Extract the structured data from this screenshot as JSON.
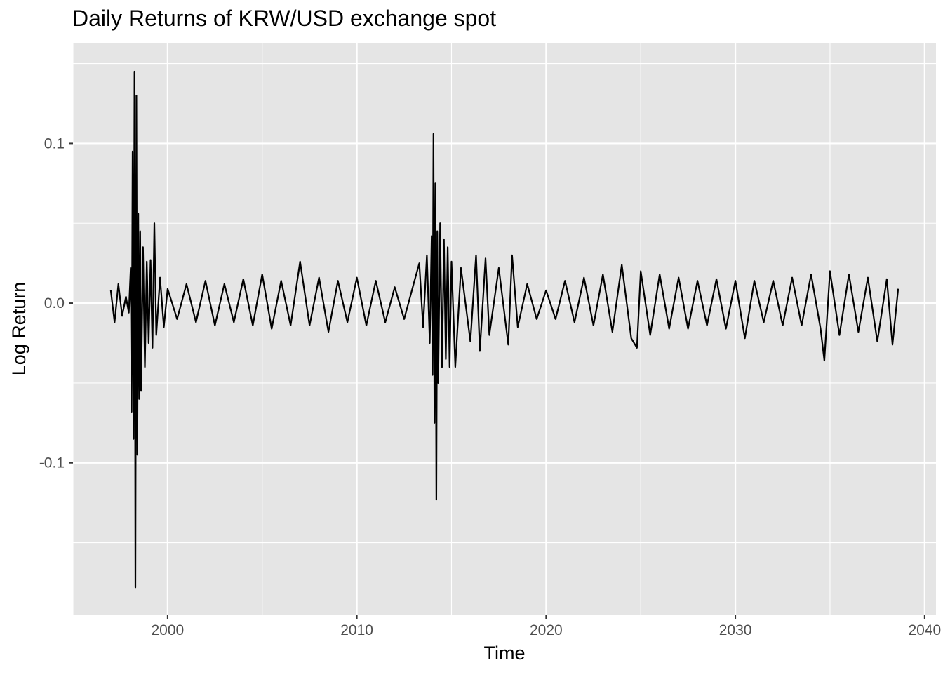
{
  "chart_data": {
    "type": "line",
    "title": "Daily Returns of KRW/USD exchange spot",
    "xlabel": "Time",
    "ylabel": "Log Return",
    "xlim": [
      1995,
      2040.6
    ],
    "ylim": [
      -0.195,
      0.163
    ],
    "x_ticks": [
      2000,
      2010,
      2020,
      2030,
      2040
    ],
    "x_tick_labels": [
      "2000",
      "2010",
      "2020",
      "2030",
      "2040"
    ],
    "y_ticks": [
      -0.1,
      0.0,
      0.1
    ],
    "y_tick_labels": [
      "-0.1",
      "0.0",
      "0.1"
    ],
    "grid": true,
    "legend": "none",
    "series": [
      {
        "x": [
          1997.0,
          1997.2,
          1997.4,
          1997.6,
          1997.8,
          1997.95,
          1998.05,
          1998.1,
          1998.15,
          1998.2,
          1998.25,
          1998.3,
          1998.35,
          1998.4,
          1998.45,
          1998.5,
          1998.55,
          1998.6,
          1998.7,
          1998.8,
          1998.9,
          1999.0,
          1999.1,
          1999.2,
          1999.3,
          1999.4,
          1999.6,
          1999.8,
          2000.0,
          2000.5,
          2001.0,
          2001.5,
          2002.0,
          2002.5,
          2003.0,
          2003.5,
          2004.0,
          2004.5,
          2005.0,
          2005.5,
          2006.0,
          2006.5,
          2007.0,
          2007.5,
          2008.0,
          2008.5,
          2009.0,
          2009.5,
          2010.0,
          2010.5,
          2011.0,
          2011.5,
          2012.0,
          2012.5,
          2013.0,
          2013.3,
          2013.5,
          2013.7,
          2013.85,
          2013.95,
          2014.0,
          2014.05,
          2014.1,
          2014.15,
          2014.2,
          2014.25,
          2014.3,
          2014.4,
          2014.5,
          2014.6,
          2014.7,
          2014.8,
          2014.9,
          2015.0,
          2015.2,
          2015.5,
          2016.0,
          2016.3,
          2016.5,
          2016.8,
          2017.0,
          2017.5,
          2018.0,
          2018.2,
          2018.5,
          2019.0,
          2019.5,
          2020.0,
          2020.5,
          2021.0,
          2021.5,
          2022.0,
          2022.5,
          2023.0,
          2023.5,
          2024.0,
          2024.5,
          2024.8,
          2025.0,
          2025.5,
          2026.0,
          2026.5,
          2027.0,
          2027.5,
          2028.0,
          2028.5,
          2029.0,
          2029.5,
          2030.0,
          2030.5,
          2031.0,
          2031.5,
          2032.0,
          2032.5,
          2033.0,
          2033.5,
          2034.0,
          2034.5,
          2034.7,
          2035.0,
          2035.5,
          2036.0,
          2036.5,
          2037.0,
          2037.5,
          2038.0,
          2038.3,
          2038.6
        ],
        "y": [
          0.008,
          -0.012,
          0.012,
          -0.008,
          0.004,
          -0.006,
          0.022,
          -0.068,
          0.095,
          -0.085,
          0.145,
          -0.178,
          0.13,
          -0.095,
          0.056,
          -0.06,
          0.045,
          -0.055,
          0.035,
          -0.04,
          0.026,
          -0.025,
          0.027,
          -0.028,
          0.05,
          -0.02,
          0.016,
          -0.015,
          0.009,
          -0.01,
          0.012,
          -0.012,
          0.014,
          -0.014,
          0.012,
          -0.012,
          0.015,
          -0.014,
          0.018,
          -0.016,
          0.014,
          -0.014,
          0.026,
          -0.014,
          0.016,
          -0.018,
          0.014,
          -0.012,
          0.016,
          -0.014,
          0.014,
          -0.012,
          0.01,
          -0.01,
          0.012,
          0.025,
          -0.015,
          0.03,
          -0.025,
          0.042,
          -0.045,
          0.106,
          -0.075,
          0.075,
          -0.123,
          0.045,
          -0.05,
          0.05,
          -0.04,
          0.04,
          -0.035,
          0.035,
          -0.04,
          0.026,
          -0.04,
          0.022,
          -0.024,
          0.03,
          -0.03,
          0.028,
          -0.02,
          0.022,
          -0.026,
          0.03,
          -0.015,
          0.012,
          -0.01,
          0.008,
          -0.01,
          0.014,
          -0.012,
          0.016,
          -0.014,
          0.018,
          -0.018,
          0.024,
          -0.022,
          -0.028,
          0.02,
          -0.02,
          0.018,
          -0.016,
          0.016,
          -0.016,
          0.014,
          -0.014,
          0.015,
          -0.016,
          0.014,
          -0.022,
          0.014,
          -0.012,
          0.014,
          -0.014,
          0.016,
          -0.014,
          0.018,
          -0.016,
          -0.036,
          0.02,
          -0.02,
          0.018,
          -0.018,
          0.016,
          -0.024,
          0.015,
          -0.026,
          0.009
        ]
      }
    ]
  }
}
